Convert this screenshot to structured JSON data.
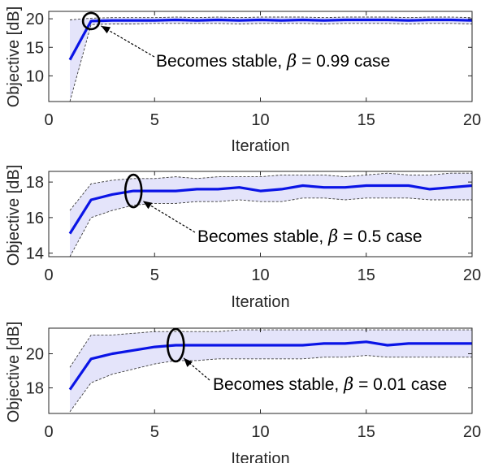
{
  "chart_data": [
    {
      "type": "line",
      "x": [
        1,
        2,
        3,
        4,
        5,
        6,
        7,
        8,
        9,
        10,
        11,
        12,
        13,
        14,
        15,
        16,
        17,
        18,
        19,
        20
      ],
      "series": [
        {
          "values": [
            12.8,
            19.6,
            19.7,
            19.7,
            19.7,
            19.8,
            19.7,
            19.8,
            19.7,
            19.8,
            19.7,
            19.8,
            19.7,
            19.8,
            19.8,
            19.8,
            19.7,
            19.8,
            19.8,
            19.7
          ],
          "upper": [
            19.8,
            20.1,
            20.2,
            20.2,
            20.2,
            20.3,
            20.2,
            20.3,
            20.2,
            20.3,
            20.3,
            20.3,
            20.2,
            20.3,
            20.3,
            20.3,
            20.2,
            20.3,
            20.3,
            20.2
          ],
          "lower": [
            5.5,
            19.0,
            19.1,
            19.1,
            19.2,
            19.2,
            19.2,
            19.2,
            19.1,
            19.2,
            19.2,
            19.2,
            19.1,
            19.2,
            19.2,
            19.2,
            19.1,
            19.2,
            19.2,
            19.1
          ]
        }
      ],
      "xlabel": "Iteration",
      "ylabel": "Objective [dB]",
      "xlim": [
        0,
        20
      ],
      "ylim": [
        5.5,
        21.3
      ],
      "xticks": [
        "0",
        "5",
        "10",
        "15",
        "20"
      ],
      "yticks": [
        "10",
        "15",
        "20"
      ],
      "annotation": {
        "text": "Becomes stable, ",
        "symbol": "β",
        "value_text": " = 0.99 case",
        "at_x": 2
      }
    },
    {
      "type": "line",
      "x": [
        1,
        2,
        3,
        4,
        5,
        6,
        7,
        8,
        9,
        10,
        11,
        12,
        13,
        14,
        15,
        16,
        17,
        18,
        19,
        20
      ],
      "series": [
        {
          "values": [
            15.1,
            17.0,
            17.3,
            17.5,
            17.5,
            17.5,
            17.6,
            17.6,
            17.7,
            17.5,
            17.6,
            17.8,
            17.7,
            17.7,
            17.8,
            17.8,
            17.8,
            17.6,
            17.7,
            17.8
          ],
          "upper": [
            16.4,
            17.9,
            18.1,
            18.2,
            18.2,
            18.3,
            18.2,
            18.3,
            18.3,
            18.3,
            18.4,
            18.4,
            18.4,
            18.3,
            18.4,
            18.5,
            18.4,
            18.4,
            18.5,
            18.5
          ],
          "lower": [
            13.8,
            16.0,
            16.4,
            16.7,
            16.8,
            16.8,
            16.9,
            16.9,
            17.0,
            16.9,
            16.9,
            17.1,
            17.1,
            17.0,
            17.1,
            17.1,
            17.1,
            17.0,
            17.0,
            17.0
          ]
        }
      ],
      "xlabel": "Iteration",
      "ylabel": "Objective [dB]",
      "xlim": [
        0,
        20
      ],
      "ylim": [
        13.8,
        18.6
      ],
      "xticks": [
        "0",
        "5",
        "10",
        "15",
        "20"
      ],
      "yticks": [
        "14",
        "16",
        "18"
      ],
      "annotation": {
        "text": "Becomes stable, ",
        "symbol": "β",
        "value_text": " = 0.5 case",
        "at_x": 4
      }
    },
    {
      "type": "line",
      "x": [
        1,
        2,
        3,
        4,
        5,
        6,
        7,
        8,
        9,
        10,
        11,
        12,
        13,
        14,
        15,
        16,
        17,
        18,
        19,
        20
      ],
      "series": [
        {
          "values": [
            17.9,
            19.7,
            20.0,
            20.2,
            20.4,
            20.5,
            20.5,
            20.5,
            20.5,
            20.5,
            20.5,
            20.5,
            20.6,
            20.6,
            20.7,
            20.5,
            20.6,
            20.6,
            20.6,
            20.6
          ],
          "upper": [
            19.2,
            21.1,
            21.1,
            21.2,
            21.3,
            21.3,
            21.3,
            21.3,
            21.4,
            21.4,
            21.4,
            21.4,
            21.4,
            21.4,
            21.4,
            21.4,
            21.4,
            21.4,
            21.4,
            21.4
          ],
          "lower": [
            16.6,
            18.3,
            18.8,
            19.1,
            19.4,
            19.6,
            19.6,
            19.7,
            19.7,
            19.7,
            19.7,
            19.7,
            19.8,
            19.8,
            19.9,
            19.8,
            19.8,
            19.8,
            19.8,
            19.8
          ]
        }
      ],
      "xlabel": "Iteration",
      "ylabel": "Objective [dB]",
      "xlim": [
        0,
        20
      ],
      "ylim": [
        16.5,
        21.5
      ],
      "xticks": [
        "0",
        "5",
        "10",
        "15",
        "20"
      ],
      "yticks": [
        "18",
        "20"
      ],
      "annotation": {
        "text": "Becomes stable, ",
        "symbol": "β",
        "value_text": " = 0.01 case",
        "at_x": 6
      }
    }
  ],
  "colors": {
    "line": "#0a14e6",
    "band_fill": "#e4e4fa",
    "band_edge": "#3c3c3c",
    "axis": "#262626"
  }
}
